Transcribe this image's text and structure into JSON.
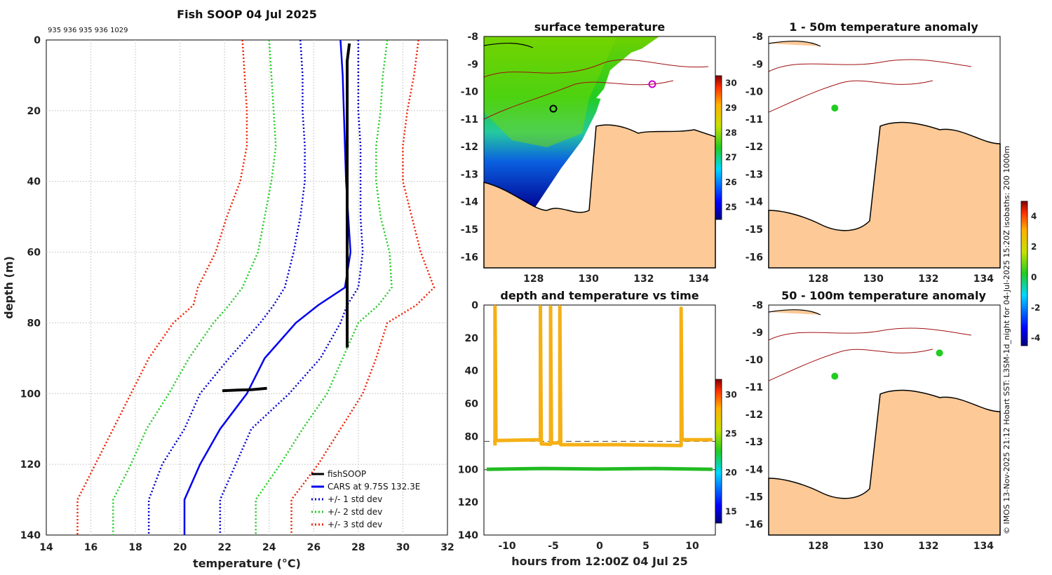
{
  "header": {
    "title": "Fish SOOP 04 Jul 2025",
    "ids_text": "935 936 935 936 1029"
  },
  "credit": "© IMOS 13-Nov-2025 21:12 Hobart SST: L3SM-1d_night for 04-Jul-2025 15:20Z isobaths: 200  1000m",
  "colors": {
    "fish": "#000000",
    "cars": "#0000ee",
    "sd1": "#0000cc",
    "sd2": "#22cc22",
    "sd3": "#ee2200",
    "land": "#fcc997",
    "trace": "#f5b014",
    "trace_bottom": "#22bb22"
  },
  "chart_data": [
    {
      "id": "profile",
      "type": "line",
      "title": "Fish SOOP 04 Jul 2025",
      "xlabel": "temperature (°C)",
      "ylabel": "depth (m)",
      "xlim": [
        14,
        32
      ],
      "ylim": [
        140,
        0
      ],
      "xticks": [
        "14",
        "16",
        "18",
        "20",
        "22",
        "24",
        "26",
        "28",
        "30",
        "32"
      ],
      "yticks": [
        "0",
        "20",
        "40",
        "60",
        "80",
        "100",
        "120",
        "140"
      ],
      "depths": [
        0,
        10,
        20,
        30,
        40,
        50,
        60,
        70,
        75,
        80,
        90,
        100,
        110,
        120,
        130,
        140
      ],
      "series": [
        {
          "name": "CARS at 9.75S 132.3E",
          "key": "cars",
          "temps": [
            27.2,
            27.3,
            27.35,
            27.4,
            27.45,
            27.55,
            27.65,
            27.4,
            26.2,
            25.2,
            23.8,
            23.0,
            21.8,
            20.9,
            20.2,
            20.2
          ]
        },
        {
          "name": "+/- 1 std dev",
          "key": "sd1",
          "temps": [
            28.0,
            28.0,
            28.0,
            28.1,
            28.1,
            28.1,
            28.2,
            28.0,
            27.5,
            27.2,
            26.3,
            24.9,
            23.2,
            22.5,
            21.8,
            21.8
          ]
        },
        {
          "name": "+/- 1 std dev",
          "key": "sd1",
          "temps": [
            25.4,
            25.5,
            25.5,
            25.6,
            25.6,
            25.4,
            25.1,
            24.7,
            24.2,
            23.6,
            22.2,
            20.9,
            20.2,
            19.2,
            18.6,
            18.6
          ]
        },
        {
          "name": "+/- 2 std dev",
          "key": "sd2",
          "temps": [
            29.3,
            29.1,
            29.0,
            28.8,
            28.8,
            29.0,
            29.4,
            29.5,
            28.9,
            28.0,
            27.3,
            26.6,
            25.5,
            24.5,
            23.4,
            23.4
          ]
        },
        {
          "name": "+/- 2 std dev",
          "key": "sd2",
          "temps": [
            24.0,
            24.1,
            24.2,
            24.3,
            24.1,
            23.8,
            23.5,
            22.8,
            22.2,
            21.5,
            20.4,
            19.5,
            18.5,
            17.8,
            17.0,
            17.0
          ]
        },
        {
          "name": "+/- 3 std dev",
          "key": "sd3",
          "temps": [
            30.7,
            30.5,
            30.2,
            30.0,
            30.0,
            30.4,
            30.8,
            31.4,
            30.6,
            29.3,
            28.8,
            28.2,
            27.2,
            26.2,
            25.0,
            25.0
          ]
        },
        {
          "name": "+/- 3 std dev",
          "key": "sd3",
          "temps": [
            22.8,
            22.9,
            23.0,
            23.0,
            22.7,
            22.1,
            21.6,
            20.8,
            20.6,
            19.7,
            18.6,
            17.8,
            17.0,
            16.2,
            15.4,
            15.4
          ]
        }
      ],
      "fish": {
        "name": "fishSOOP",
        "upper": {
          "temps": [
            27.6,
            27.5,
            27.5,
            27.5,
            27.5,
            27.5,
            27.5,
            27.5,
            27.5
          ],
          "depths": [
            1,
            6,
            10,
            20,
            40,
            60,
            70,
            80,
            87
          ]
        },
        "lower": {
          "temps": [
            21.9,
            22.6,
            23.2,
            23.9
          ],
          "depths": [
            99.2,
            99.0,
            98.9,
            98.5
          ]
        }
      },
      "legend": {
        "position": "bottom-right",
        "entries": [
          "fishSOOP",
          "CARS at 9.75S 132.3E",
          "+/- 1 std dev",
          "+/- 2 std dev",
          "+/- 3 std dev"
        ]
      }
    },
    {
      "id": "sst",
      "type": "heatmap",
      "title": "surface temperature",
      "xticks": [
        "128",
        "130",
        "132",
        "134"
      ],
      "yticks": [
        "-8",
        "-9",
        "-10",
        "-11",
        "-12",
        "-13",
        "-14",
        "-15",
        "-16"
      ],
      "xlim": [
        126.2,
        134.6
      ],
      "ylim": [
        -16.4,
        -8
      ],
      "colorbar_ticks": [
        "25",
        "26",
        "27",
        "28",
        "29",
        "30"
      ],
      "colorbar_range": [
        24.5,
        30.3
      ]
    },
    {
      "id": "anom1",
      "type": "heatmap",
      "title": "1 - 50m temperature anomaly",
      "xticks": [
        "128",
        "130",
        "132",
        "134"
      ],
      "yticks": [
        "-8",
        "-9",
        "-10",
        "-11",
        "-12",
        "-13",
        "-14",
        "-15",
        "-16"
      ],
      "xlim": [
        126.2,
        134.6
      ],
      "ylim": [
        -16.4,
        -8
      ],
      "points": [
        {
          "lon": 128.6,
          "lat": -10.6,
          "value": 0.5
        }
      ]
    },
    {
      "id": "anom2",
      "type": "heatmap",
      "title": "50 - 100m temperature anomaly",
      "xticks": [
        "128",
        "130",
        "132",
        "134"
      ],
      "yticks": [
        "-8",
        "-9",
        "-10",
        "-11",
        "-12",
        "-13",
        "-14",
        "-15",
        "-16"
      ],
      "xlim": [
        126.2,
        134.6
      ],
      "ylim": [
        -16.4,
        -8
      ],
      "points": [
        {
          "lon": 128.6,
          "lat": -10.6,
          "value": 0.5
        },
        {
          "lon": 132.4,
          "lat": -9.75,
          "value": 0.5
        }
      ],
      "colorbar_ticks": [
        "-4",
        "-2",
        "0",
        "2",
        "4"
      ],
      "colorbar_range": [
        -4.5,
        5
      ]
    },
    {
      "id": "timeseries",
      "type": "scatter",
      "title": "depth and temperature vs time",
      "xlabel": "hours from 12:00Z 04 Jul 25",
      "xticks": [
        "-10",
        "-5",
        "0",
        "5",
        "10"
      ],
      "yticks": [
        "0",
        "20",
        "40",
        "60",
        "80",
        "100",
        "120",
        "140"
      ],
      "xlim": [
        -12.5,
        12.5
      ],
      "ylim": [
        140,
        0
      ],
      "upper_trace": {
        "x": [
          -11.3,
          -11.3,
          -11.2,
          -6.4,
          -6.4,
          -6.3,
          -5.3,
          -5.3,
          -5.2,
          -4.3,
          -4.3,
          -4.2,
          2,
          8.8,
          8.8,
          8.9,
          12.2
        ],
        "y": [
          85.5,
          1,
          82.5,
          82,
          1,
          84.5,
          84.8,
          1,
          84,
          84,
          1,
          85,
          85,
          85.5,
          2,
          82,
          82
        ]
      },
      "bottom_trace": {
        "x": [
          -12.2,
          -6,
          0,
          6,
          12.2
        ],
        "y": [
          100,
          99.5,
          99.8,
          99.5,
          100
        ]
      },
      "dashed_lines": [
        {
          "y": 83
        },
        {
          "y": 100.2
        }
      ],
      "colorbar_ticks": [
        "15",
        "20",
        "25",
        "30"
      ],
      "colorbar_range": [
        13.5,
        32
      ]
    }
  ]
}
